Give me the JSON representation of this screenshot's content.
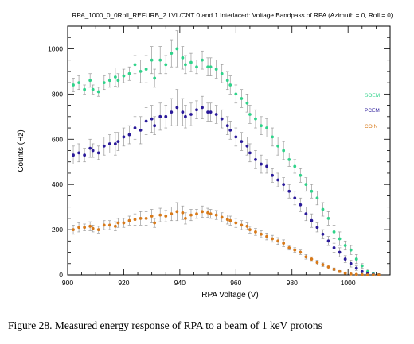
{
  "caption": "Figure 28. Measured energy response of RPA to a beam of 1 keV protons",
  "chart_data": {
    "type": "scatter",
    "title": "RPA_1000_0_0Roll_REFURB_2 LVL/CNT 0 and 1 Interlaced: Voltage Bandpass of RPA (Azimuth = 0, Roll = 0)",
    "xlabel": "RPA Voltage (V)",
    "ylabel": "Counts (Hz)",
    "xlim": [
      900,
      1015
    ],
    "ylim": [
      0,
      1100
    ],
    "xticks": [
      "900",
      "920",
      "940",
      "960",
      "980",
      "1000"
    ],
    "yticks": [
      "0",
      "200",
      "400",
      "600",
      "800",
      "1000"
    ],
    "legend_position": "right",
    "error_bars": true,
    "series": [
      {
        "name": "SOEM",
        "color": "#2fd38a",
        "x": [
          902,
          904,
          906,
          908,
          909,
          911,
          913,
          915,
          917,
          918,
          920,
          922,
          924,
          926,
          928,
          930,
          931,
          933,
          935,
          937,
          939,
          941,
          942,
          944,
          946,
          948,
          950,
          951,
          953,
          955,
          957,
          958,
          960,
          962,
          964,
          965,
          967,
          969,
          971,
          973,
          975,
          977,
          979,
          981,
          983,
          985,
          987,
          989,
          991,
          993,
          995,
          997,
          999,
          1001,
          1003,
          1005,
          1007,
          1009,
          1011
        ],
        "y": [
          840,
          850,
          820,
          860,
          820,
          810,
          850,
          860,
          875,
          860,
          880,
          890,
          930,
          900,
          910,
          950,
          870,
          950,
          930,
          980,
          1000,
          960,
          930,
          940,
          920,
          950,
          920,
          920,
          910,
          890,
          860,
          840,
          800,
          780,
          760,
          710,
          690,
          660,
          650,
          610,
          570,
          550,
          510,
          480,
          440,
          400,
          370,
          340,
          290,
          250,
          190,
          160,
          130,
          110,
          70,
          40,
          15,
          5,
          0
        ],
        "err": [
          30,
          30,
          20,
          30,
          20,
          20,
          30,
          30,
          40,
          30,
          30,
          30,
          40,
          50,
          60,
          60,
          40,
          60,
          40,
          60,
          80,
          50,
          40,
          40,
          30,
          40,
          40,
          40,
          40,
          40,
          40,
          40,
          40,
          40,
          40,
          40,
          40,
          40,
          40,
          40,
          40,
          40,
          30,
          30,
          30,
          30,
          30,
          30,
          30,
          30,
          30,
          30,
          20,
          20,
          20,
          10,
          10,
          5,
          5
        ]
      },
      {
        "name": "PCEM",
        "color": "#2a1a9a",
        "x": [
          902,
          904,
          906,
          908,
          909,
          911,
          913,
          915,
          917,
          918,
          920,
          922,
          924,
          926,
          928,
          930,
          931,
          933,
          935,
          937,
          939,
          941,
          942,
          944,
          946,
          948,
          950,
          951,
          953,
          955,
          957,
          958,
          960,
          962,
          964,
          965,
          967,
          969,
          971,
          973,
          975,
          977,
          979,
          981,
          983,
          985,
          987,
          989,
          991,
          993,
          995,
          997,
          999,
          1001,
          1003,
          1005,
          1007,
          1009,
          1011
        ],
        "y": [
          530,
          540,
          530,
          560,
          550,
          540,
          570,
          580,
          580,
          590,
          610,
          620,
          650,
          640,
          680,
          690,
          660,
          700,
          700,
          720,
          740,
          720,
          700,
          710,
          730,
          740,
          720,
          720,
          710,
          690,
          660,
          640,
          610,
          590,
          570,
          540,
          510,
          490,
          480,
          440,
          420,
          400,
          370,
          340,
          310,
          270,
          240,
          210,
          180,
          150,
          120,
          100,
          70,
          50,
          30,
          15,
          5,
          2,
          0
        ],
        "err": [
          40,
          40,
          30,
          40,
          30,
          30,
          40,
          40,
          50,
          40,
          40,
          40,
          50,
          60,
          60,
          60,
          40,
          60,
          50,
          60,
          80,
          60,
          50,
          50,
          40,
          50,
          40,
          40,
          40,
          40,
          40,
          40,
          40,
          40,
          40,
          40,
          40,
          40,
          30,
          30,
          30,
          30,
          30,
          30,
          30,
          30,
          30,
          20,
          20,
          20,
          20,
          20,
          15,
          15,
          10,
          5,
          5,
          2,
          2
        ]
      },
      {
        "name": "COIN",
        "color": "#d87a1a",
        "x": [
          902,
          904,
          906,
          908,
          909,
          911,
          913,
          915,
          917,
          918,
          920,
          922,
          924,
          926,
          928,
          930,
          931,
          933,
          935,
          937,
          939,
          941,
          942,
          944,
          946,
          948,
          950,
          951,
          953,
          955,
          957,
          958,
          960,
          962,
          964,
          965,
          967,
          969,
          971,
          973,
          975,
          977,
          979,
          981,
          983,
          985,
          987,
          989,
          991,
          993,
          995,
          997,
          999,
          1001,
          1003,
          1005,
          1007,
          1009,
          1011
        ],
        "y": [
          200,
          210,
          210,
          215,
          205,
          200,
          220,
          220,
          215,
          230,
          230,
          240,
          245,
          250,
          250,
          260,
          230,
          265,
          260,
          270,
          280,
          275,
          250,
          265,
          270,
          280,
          275,
          270,
          265,
          255,
          245,
          240,
          230,
          220,
          215,
          200,
          190,
          180,
          170,
          160,
          150,
          140,
          120,
          110,
          100,
          80,
          70,
          55,
          45,
          35,
          25,
          15,
          8,
          4,
          2,
          1,
          0,
          0,
          0
        ],
        "err": [
          20,
          20,
          15,
          20,
          15,
          15,
          20,
          20,
          20,
          20,
          20,
          20,
          25,
          30,
          30,
          30,
          20,
          30,
          25,
          30,
          40,
          30,
          25,
          25,
          20,
          25,
          20,
          20,
          20,
          20,
          20,
          20,
          20,
          20,
          15,
          15,
          15,
          15,
          15,
          15,
          15,
          15,
          10,
          10,
          10,
          10,
          10,
          10,
          8,
          8,
          6,
          5,
          4,
          3,
          2,
          1,
          1,
          1,
          1
        ]
      }
    ]
  }
}
